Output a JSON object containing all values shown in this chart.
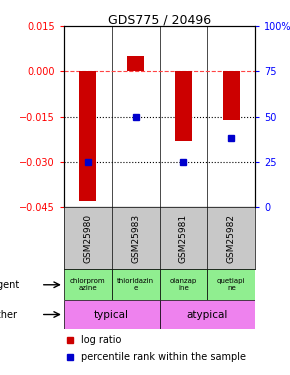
{
  "title": "GDS775 / 20496",
  "samples": [
    "GSM25980",
    "GSM25983",
    "GSM25981",
    "GSM25982"
  ],
  "log_ratios": [
    -0.043,
    0.005,
    -0.023,
    -0.016
  ],
  "percentile_ranks": [
    25,
    50,
    25,
    38
  ],
  "ylim_left": [
    -0.045,
    0.015
  ],
  "ylim_right": [
    0,
    100
  ],
  "yticks_left": [
    0.015,
    0,
    -0.015,
    -0.03,
    -0.045
  ],
  "yticks_right": [
    100,
    75,
    50,
    25,
    0
  ],
  "agents": [
    "chlorprom\nazine",
    "thioridazin\ne",
    "olanzap\nine",
    "quetiapi\nne"
  ],
  "agent_color": "#90ee90",
  "other_color": "#ee82ee",
  "other_groups": [
    [
      "typical",
      0,
      2
    ],
    [
      "atypical",
      2,
      4
    ]
  ],
  "bar_color": "#cc0000",
  "dot_color": "#0000cc",
  "dashed_line_color": "#ff4444",
  "dotted_line_color": "#000000",
  "background_color": "#ffffff",
  "sample_bg": "#c8c8c8"
}
